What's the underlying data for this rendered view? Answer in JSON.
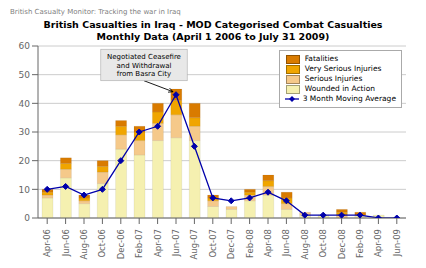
{
  "chart_data": {
    "type": "bar",
    "title": "British Casualties in Iraq - MOD Categorised Combat Casualties",
    "subtitle": "Monthly Data (April 1 2006 to July 31 2009)",
    "watermark": "British Casualty Monitor: Tracking the war in Iraq",
    "categories": [
      "Apr-06",
      "Jun-06",
      "Aug-06",
      "Oct-06",
      "Dec-06",
      "Feb-07",
      "Apr-07",
      "Jun-07",
      "Aug-07",
      "Oct-07",
      "Dec-07",
      "Feb-08",
      "Apr-08",
      "Jun-08",
      "Aug-08",
      "Oct-08",
      "Dec-08",
      "Feb-09",
      "Apr-09",
      "Jun-09"
    ],
    "stacked": true,
    "series": [
      {
        "name": "Fatalities",
        "color": "#d97b00",
        "values": [
          1,
          2,
          1,
          2,
          2,
          2,
          3,
          4,
          5,
          1,
          0,
          1,
          2,
          2,
          0,
          0,
          1,
          1,
          0,
          0
        ]
      },
      {
        "name": "Very Serious Injuries",
        "color": "#f0a500",
        "values": [
          1,
          2,
          1,
          2,
          3,
          3,
          4,
          5,
          3,
          1,
          0,
          1,
          2,
          2,
          0,
          0,
          1,
          0,
          0,
          0
        ]
      },
      {
        "name": "Serious Injuries",
        "color": "#f5c98a",
        "values": [
          1,
          3,
          1,
          4,
          5,
          5,
          6,
          8,
          5,
          2,
          1,
          2,
          3,
          2,
          1,
          0,
          1,
          0,
          0,
          0
        ]
      },
      {
        "name": "Wounded in Action",
        "color": "#f5f0b0",
        "values": [
          7,
          14,
          5,
          12,
          24,
          22,
          27,
          28,
          27,
          4,
          3,
          6,
          8,
          3,
          1,
          1,
          0,
          1,
          1,
          0
        ]
      },
      {
        "name": "3 Month Moving Average",
        "type": "line",
        "color": "#0000aa",
        "marker": "diamond",
        "values": [
          10,
          11,
          8,
          10,
          20,
          30,
          32,
          43,
          25,
          7,
          6,
          7,
          9,
          6,
          1,
          1,
          1,
          1,
          0,
          0
        ]
      }
    ],
    "annotations": [
      {
        "text": "Negotiated Ceasefire\nand Withdrawal\nfrom Basra City",
        "x": "Jun-07"
      }
    ],
    "ylim": [
      0,
      60
    ],
    "yticks": [
      0,
      10,
      20,
      30,
      40,
      50,
      60
    ],
    "grid": true,
    "legend": "upper right"
  }
}
